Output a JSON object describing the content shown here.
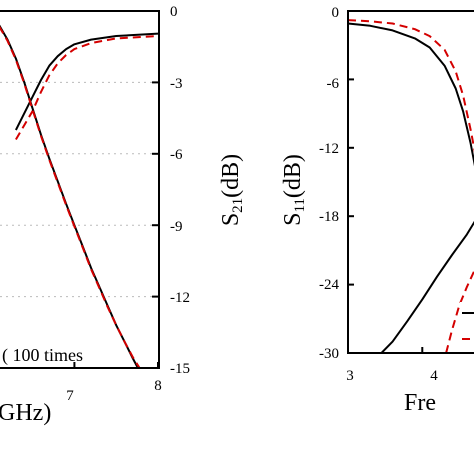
{
  "chart_data": [
    {
      "type": "line",
      "panel": "left",
      "xlabel": "GHz)",
      "xticks": [
        "7",
        "8"
      ],
      "xlim": [
        6.05,
        8
      ],
      "right_axis": {
        "label_main": "S",
        "label_sub": "21",
        "label_tail": "(dB)",
        "ylim": [
          -15,
          0
        ],
        "ticks": [
          "0",
          "-3",
          "-6",
          "-9",
          "-12",
          "-15"
        ]
      },
      "annotation": "( 100 times",
      "series": [
        {
          "color": "#000000",
          "style": "solid",
          "x": [
            6.3,
            6.5,
            6.6,
            6.7,
            6.8,
            6.9,
            7.0,
            7.2,
            7.5,
            8.0
          ],
          "y": [
            -5.0,
            -3.6,
            -2.9,
            -2.3,
            -1.9,
            -1.6,
            -1.4,
            -1.2,
            -1.05,
            -0.95
          ]
        },
        {
          "color": "#d40000",
          "style": "dashed",
          "x": [
            6.3,
            6.5,
            6.6,
            6.7,
            6.8,
            6.9,
            7.0,
            7.2,
            7.5,
            8.0
          ],
          "y": [
            -5.4,
            -4.2,
            -3.4,
            -2.7,
            -2.2,
            -1.85,
            -1.6,
            -1.35,
            -1.15,
            -1.05
          ]
        },
        {
          "color": "#000000",
          "style": "solid",
          "x": [
            6.1,
            6.2,
            6.3,
            6.4,
            6.5,
            6.6,
            6.7,
            6.8,
            6.9,
            7.0,
            7.1,
            7.2,
            7.3,
            7.4,
            7.5,
            7.6,
            7.7,
            7.76
          ],
          "y": [
            -0.6,
            -1.2,
            -2.0,
            -3.0,
            -4.1,
            -5.2,
            -6.2,
            -7.15,
            -8.1,
            -9.0,
            -9.9,
            -10.8,
            -11.6,
            -12.4,
            -13.2,
            -13.9,
            -14.6,
            -15.0
          ]
        },
        {
          "color": "#d40000",
          "style": "dashed",
          "x": [
            6.1,
            6.2,
            6.3,
            6.4,
            6.5,
            6.6,
            6.7,
            6.8,
            6.9,
            7.0,
            7.1,
            7.2,
            7.3,
            7.4,
            7.5,
            7.6,
            7.7,
            7.78
          ],
          "y": [
            -0.65,
            -1.25,
            -2.05,
            -3.05,
            -4.15,
            -5.25,
            -6.25,
            -7.2,
            -8.15,
            -9.05,
            -9.95,
            -10.85,
            -11.65,
            -12.45,
            -13.2,
            -13.9,
            -14.55,
            -15.0
          ]
        }
      ]
    },
    {
      "type": "line",
      "panel": "right",
      "xlabel": "Fre",
      "xticks": [
        "3",
        "4"
      ],
      "xlim": [
        3,
        4.75
      ],
      "ylim": [
        -30,
        0
      ],
      "ylabel_main": "S",
      "ylabel_sub": "11",
      "ylabel_tail": "(dB)",
      "yticks": [
        "0",
        "-6",
        "-12",
        "-18",
        "-24",
        "-30"
      ],
      "series": [
        {
          "color": "#000000",
          "style": "solid",
          "x": [
            3.0,
            3.3,
            3.6,
            3.9,
            4.1,
            4.3,
            4.45,
            4.55,
            4.65,
            4.75
          ],
          "y": [
            -1.1,
            -1.3,
            -1.7,
            -2.4,
            -3.2,
            -4.8,
            -6.8,
            -8.8,
            -11.6,
            -15.0
          ]
        },
        {
          "color": "#d40000",
          "style": "dashed",
          "x": [
            3.0,
            3.3,
            3.6,
            3.9,
            4.1,
            4.3,
            4.45,
            4.55,
            4.65,
            4.75
          ],
          "y": [
            -0.8,
            -0.9,
            -1.1,
            -1.6,
            -2.2,
            -3.4,
            -5.3,
            -7.4,
            -10.4,
            -13.8
          ]
        },
        {
          "color": "#000000",
          "style": "solid",
          "x": [
            3.45,
            3.6,
            3.8,
            4.0,
            4.2,
            4.4,
            4.6,
            4.75
          ],
          "y": [
            -30.0,
            -29.0,
            -27.2,
            -25.3,
            -23.3,
            -21.4,
            -19.6,
            -18.0
          ]
        },
        {
          "color": "#d40000",
          "style": "dashed",
          "x": [
            4.32,
            4.4,
            4.5,
            4.6,
            4.7,
            4.75
          ],
          "y": [
            -30.0,
            -28.0,
            -25.8,
            -24.2,
            -22.8,
            -22.0
          ]
        }
      ],
      "legend_samples": [
        {
          "color": "#000000",
          "style": "solid"
        },
        {
          "color": "#d40000",
          "style": "dashed"
        }
      ]
    }
  ]
}
